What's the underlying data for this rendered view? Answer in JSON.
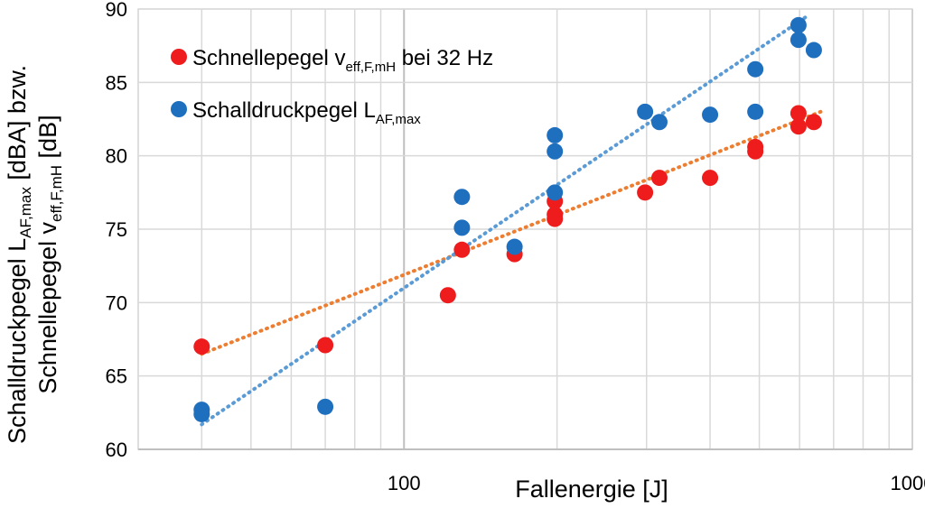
{
  "chart_data": {
    "type": "scatter",
    "x_scale": "log",
    "xlim": [
      30,
      1000
    ],
    "ylim": [
      60,
      90
    ],
    "grid": true,
    "legend_position": "top-left",
    "xlabel": "Fallenergie [J]",
    "ylabel_line1": {
      "main": "Schalldruckpegel L",
      "sub": "AF,max",
      "tail": " [dBA] bzw."
    },
    "ylabel_line2": {
      "main": "Schnellepegel v",
      "sub": "eff,F,mH",
      "tail": " [dB]"
    },
    "x_ticks": [
      {
        "value": 100,
        "label": "100"
      },
      {
        "value": 1000,
        "label": "1000"
      }
    ],
    "y_ticks": [
      {
        "value": 60,
        "label": "60"
      },
      {
        "value": 65,
        "label": "65"
      },
      {
        "value": 70,
        "label": "70"
      },
      {
        "value": 75,
        "label": "75"
      },
      {
        "value": 80,
        "label": "80"
      },
      {
        "value": 85,
        "label": "85"
      },
      {
        "value": 90,
        "label": "90"
      }
    ],
    "series": [
      {
        "name_main": "Schnellepegel v",
        "name_sub": "eff,F,mH",
        "name_tail": " bei 32 Hz",
        "color": "#ee1c1c",
        "trendline_color": "#ed7d31",
        "trendline": [
          [
            40,
            66.5
          ],
          [
            660,
            83.0
          ]
        ],
        "points": [
          [
            40,
            67.0
          ],
          [
            70,
            67.1
          ],
          [
            122,
            70.5
          ],
          [
            130,
            73.6
          ],
          [
            165,
            73.3
          ],
          [
            198,
            76.9
          ],
          [
            198,
            75.7
          ],
          [
            198,
            76.0
          ],
          [
            298,
            77.5
          ],
          [
            318,
            78.5
          ],
          [
            400,
            78.5
          ],
          [
            491,
            80.6
          ],
          [
            491,
            80.3
          ],
          [
            597,
            82.9
          ],
          [
            597,
            82.0
          ],
          [
            640,
            82.3
          ]
        ]
      },
      {
        "name_main": "Schalldruckpegel L",
        "name_sub": "AF,max",
        "name_tail": "",
        "color": "#1f6fbf",
        "trendline_color": "#5b9bd5",
        "trendline": [
          [
            40,
            61.7
          ],
          [
            620,
            89.5
          ]
        ],
        "points": [
          [
            40,
            62.7
          ],
          [
            40,
            62.4
          ],
          [
            70,
            62.9
          ],
          [
            130,
            77.2
          ],
          [
            130,
            75.1
          ],
          [
            165,
            73.8
          ],
          [
            198,
            81.4
          ],
          [
            198,
            80.3
          ],
          [
            198,
            77.5
          ],
          [
            298,
            83.0
          ],
          [
            318,
            82.3
          ],
          [
            400,
            82.8
          ],
          [
            491,
            85.9
          ],
          [
            491,
            83.0
          ],
          [
            597,
            88.9
          ],
          [
            597,
            87.9
          ],
          [
            640,
            87.2
          ]
        ]
      }
    ]
  }
}
